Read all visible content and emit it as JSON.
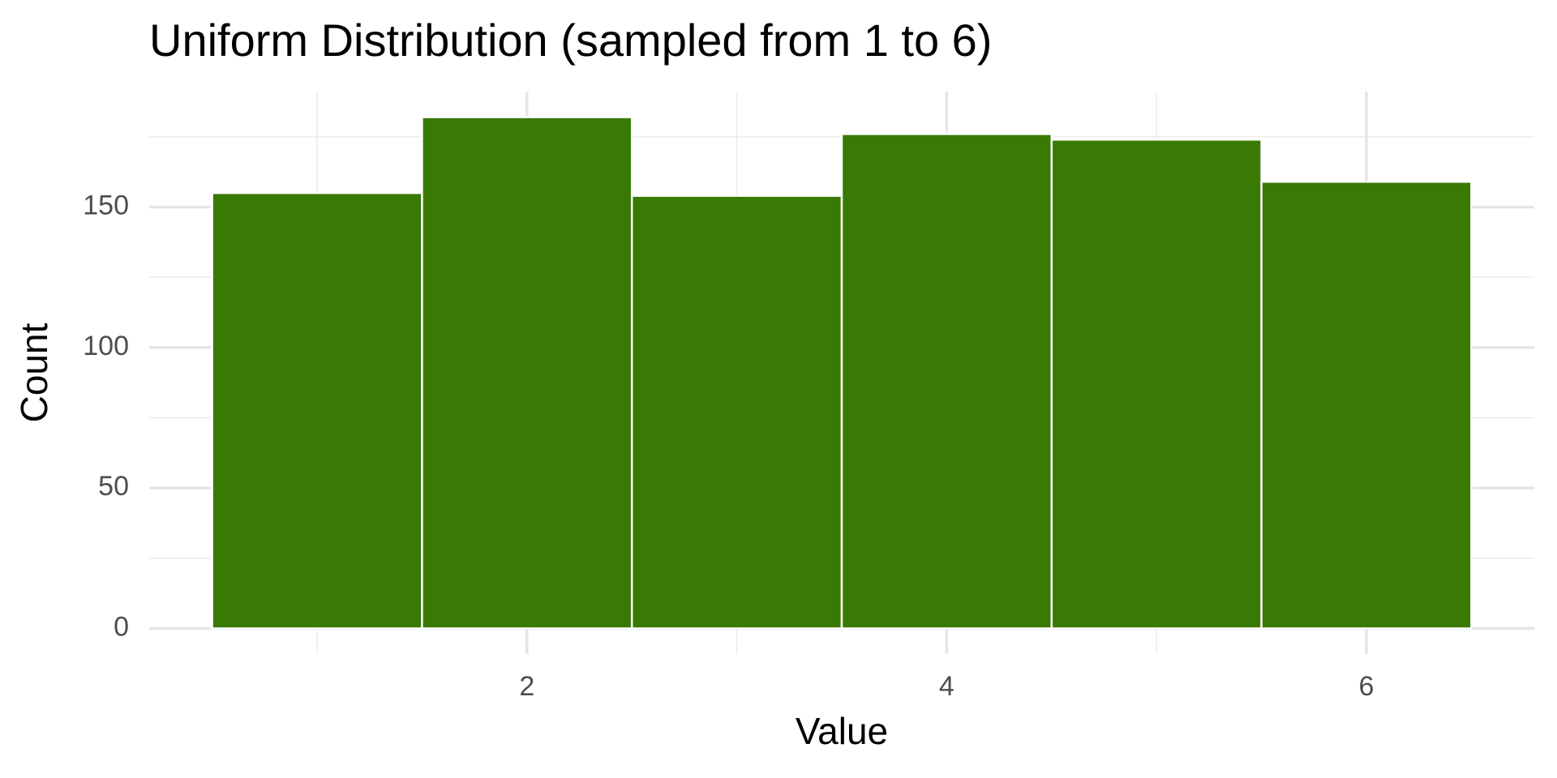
{
  "chart_data": {
    "type": "histogram",
    "title": "Uniform Distribution (sampled from 1 to 6)",
    "x_label": "Value",
    "y_label": "Count",
    "bins": [
      0.5,
      1.5,
      2.5,
      3.5,
      4.5,
      5.5,
      6.5
    ],
    "values": [
      155,
      182,
      154,
      176,
      174,
      159
    ],
    "color": "#387a04",
    "xlim": [
      0.2,
      6.8
    ],
    "ylim": [
      -9.1,
      191.1
    ],
    "xticks": [
      2,
      4,
      6
    ],
    "yticks": [
      0,
      50,
      100,
      150
    ],
    "x_minor_grid": [
      1,
      3,
      5
    ],
    "y_minor_grid": [
      25,
      75,
      125,
      175
    ],
    "grid": true
  }
}
